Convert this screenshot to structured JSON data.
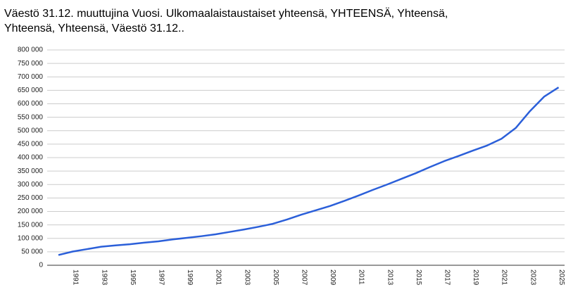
{
  "chart_data": {
    "type": "line",
    "title": [
      "Väestö 31.12. muuttujina Vuosi. Ulkomaalaistaustaiset yhteensä, YHTEENSÄ, Yhteensä,",
      "Yhteensä, Yhteensä, Väestö 31.12.."
    ],
    "categories": [
      null,
      "1991",
      null,
      "1993",
      null,
      "1995",
      null,
      "1997",
      null,
      "1999",
      null,
      "2001",
      null,
      "2003",
      null,
      "2005",
      null,
      "2007",
      null,
      "2009",
      null,
      "2011",
      null,
      "2013",
      null,
      "2015",
      null,
      "2017",
      null,
      "2019",
      null,
      "2021",
      null,
      "2023",
      null,
      "2025"
    ],
    "series": [
      {
        "color": "#2b5fd9",
        "values": [
          38000,
          51000,
          60000,
          69000,
          74000,
          78000,
          84000,
          89000,
          96000,
          102000,
          108000,
          115000,
          124000,
          133000,
          143000,
          154000,
          170000,
          188000,
          204000,
          220000,
          239000,
          259000,
          280000,
          300000,
          321000,
          342000,
          365000,
          387000,
          406000,
          426000,
          445000,
          470000,
          510000,
          573000,
          627000,
          661000
        ]
      }
    ],
    "ylim": [
      0,
      800000
    ],
    "yticks": [
      {
        "value": 0,
        "label": "0"
      },
      {
        "value": 50000,
        "label": "50 000"
      },
      {
        "value": 100000,
        "label": "100 000"
      },
      {
        "value": 150000,
        "label": "150 000"
      },
      {
        "value": 200000,
        "label": "200 000"
      },
      {
        "value": 250000,
        "label": "250 000"
      },
      {
        "value": 300000,
        "label": "300 000"
      },
      {
        "value": 350000,
        "label": "350 000"
      },
      {
        "value": 400000,
        "label": "400 000"
      },
      {
        "value": 450000,
        "label": "450 000"
      },
      {
        "value": 500000,
        "label": "500 000"
      },
      {
        "value": 550000,
        "label": "550 000"
      },
      {
        "value": 600000,
        "label": "600 000"
      },
      {
        "value": 650000,
        "label": "650 000"
      },
      {
        "value": 700000,
        "label": "700 000"
      },
      {
        "value": 750000,
        "label": "750 000"
      },
      {
        "value": 800000,
        "label": "800 000"
      }
    ],
    "grid": true
  }
}
